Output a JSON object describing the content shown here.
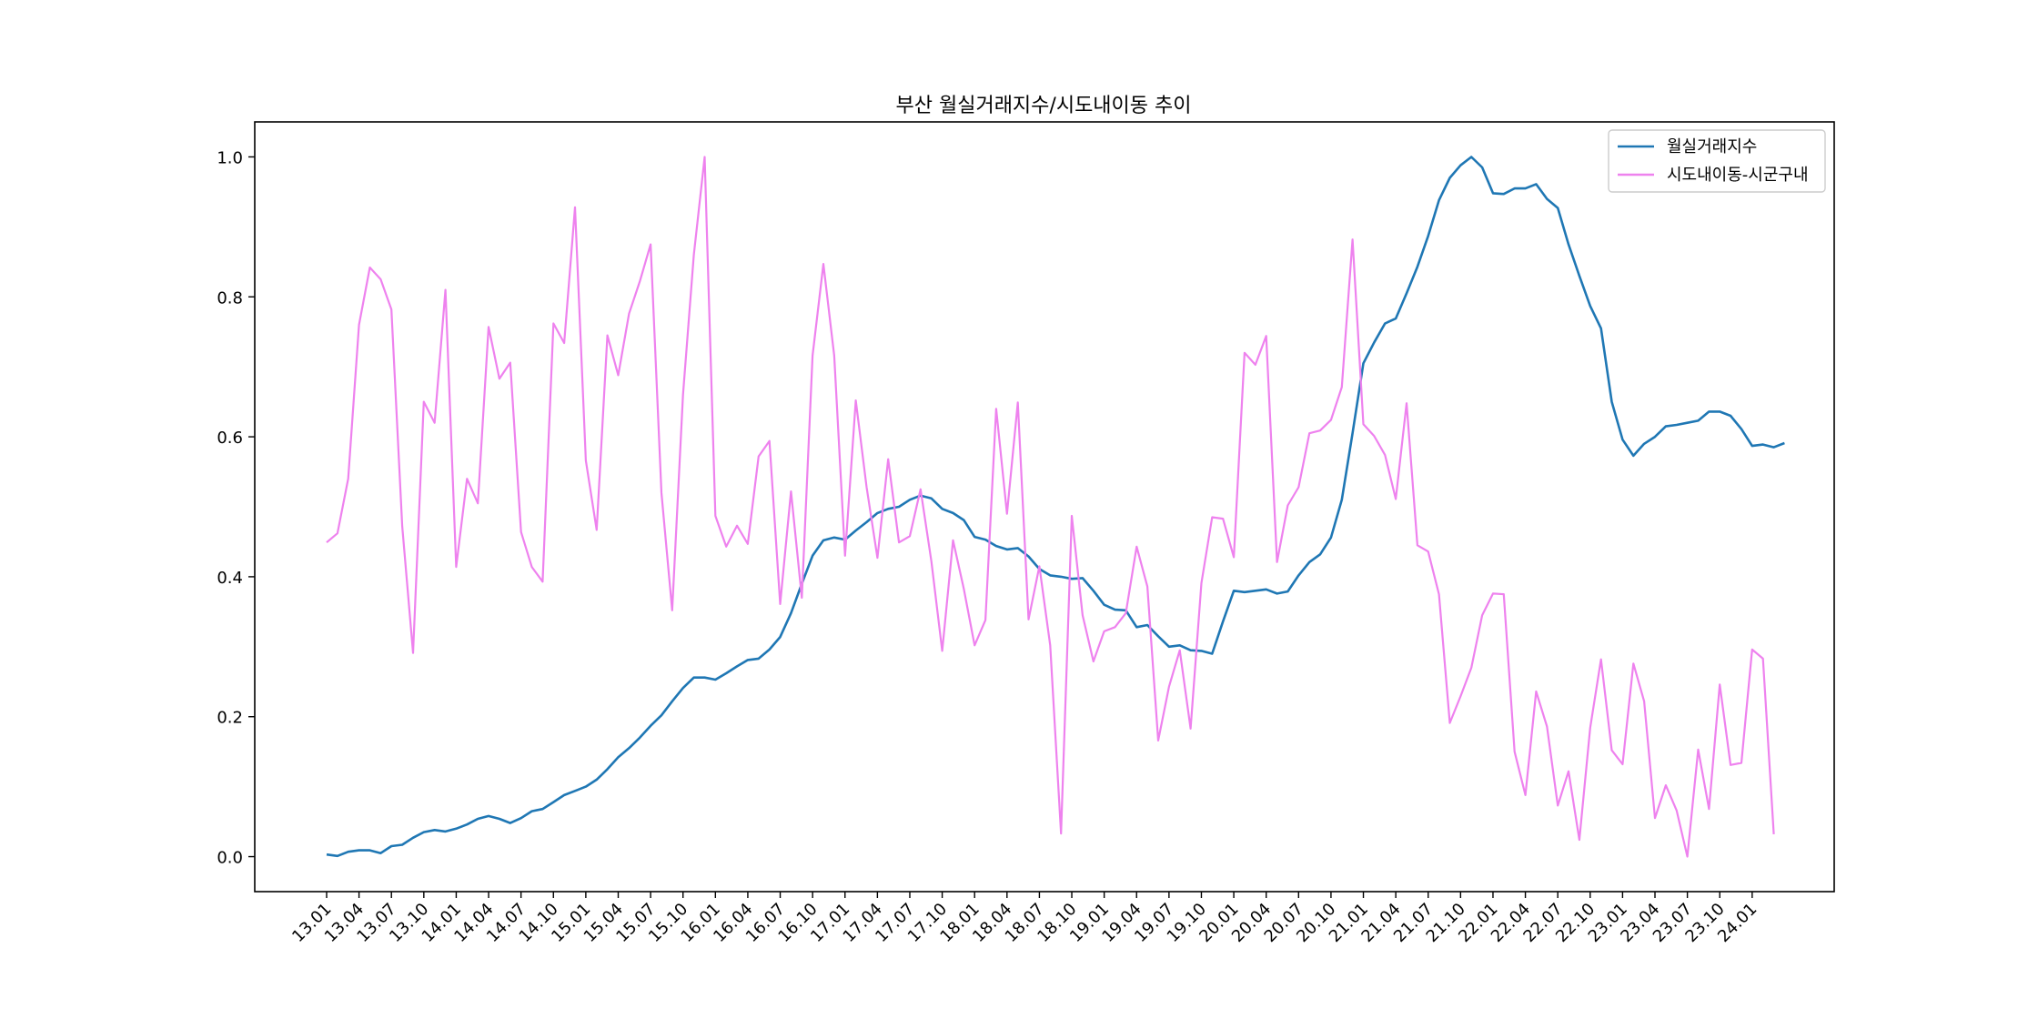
{
  "chart_data": {
    "type": "line",
    "title": "부산 월실거래지수/시도내이동 추이",
    "xlabel": "",
    "ylabel": "",
    "ylim": [
      -0.05,
      1.05
    ],
    "yticks": [
      "0.0",
      "0.2",
      "0.4",
      "0.6",
      "0.8",
      "1.0"
    ],
    "xtick_labels": [
      "13.01",
      "13.04",
      "13.07",
      "13.10",
      "14.01",
      "14.04",
      "14.07",
      "14.10",
      "15.01",
      "15.04",
      "15.07",
      "15.10",
      "16.01",
      "16.04",
      "16.07",
      "16.10",
      "17.01",
      "17.04",
      "17.07",
      "17.10",
      "18.01",
      "18.04",
      "18.07",
      "18.10",
      "19.01",
      "19.04",
      "19.07",
      "19.10",
      "20.01",
      "20.04",
      "20.07",
      "20.10",
      "21.01",
      "21.04",
      "21.07",
      "21.10",
      "22.01",
      "22.04",
      "22.07",
      "22.10",
      "23.01",
      "23.04",
      "23.07",
      "23.10",
      "24.01"
    ],
    "grid": false,
    "legend": "top-right",
    "series": [
      {
        "name": "월실거래지수",
        "color": "#1f77b4",
        "values": [
          0.003,
          0.001,
          0.007,
          0.009,
          0.009,
          0.005,
          0.015,
          0.017,
          0.027,
          0.035,
          0.038,
          0.036,
          0.04,
          0.046,
          0.054,
          0.058,
          0.054,
          0.048,
          0.055,
          0.065,
          0.068,
          0.078,
          0.088,
          0.094,
          0.1,
          0.11,
          0.125,
          0.142,
          0.155,
          0.17,
          0.187,
          0.202,
          0.222,
          0.241,
          0.256,
          0.256,
          0.253,
          0.262,
          0.272,
          0.281,
          0.283,
          0.296,
          0.314,
          0.348,
          0.39,
          0.43,
          0.452,
          0.456,
          0.453,
          0.466,
          0.478,
          0.491,
          0.497,
          0.5,
          0.51,
          0.516,
          0.512,
          0.497,
          0.491,
          0.481,
          0.457,
          0.453,
          0.444,
          0.439,
          0.441,
          0.429,
          0.411,
          0.402,
          0.4,
          0.397,
          0.398,
          0.38,
          0.36,
          0.353,
          0.352,
          0.328,
          0.331,
          0.315,
          0.3,
          0.302,
          0.295,
          0.294,
          0.29,
          0.336,
          0.38,
          0.378,
          0.38,
          0.382,
          0.376,
          0.379,
          0.402,
          0.421,
          0.432,
          0.456,
          0.51,
          0.605,
          0.705,
          0.735,
          0.762,
          0.769,
          0.805,
          0.843,
          0.887,
          0.938,
          0.97,
          0.988,
          1.0,
          0.985,
          0.948,
          0.947,
          0.955,
          0.955,
          0.961,
          0.94,
          0.927,
          0.875,
          0.83,
          0.787,
          0.755,
          0.65,
          0.596,
          0.573,
          0.59,
          0.6,
          0.615,
          0.617,
          0.62,
          0.623,
          0.636,
          0.636,
          0.63,
          0.611,
          0.587,
          0.589,
          0.585,
          0.591
        ]
      },
      {
        "name": "시도내이동-시군구내",
        "color": "#ee82ee",
        "values": [
          0.449,
          0.462,
          0.54,
          0.76,
          0.842,
          0.825,
          0.782,
          0.472,
          0.291,
          0.65,
          0.62,
          0.81,
          0.414,
          0.54,
          0.505,
          0.757,
          0.683,
          0.706,
          0.464,
          0.414,
          0.393,
          0.762,
          0.734,
          0.928,
          0.566,
          0.467,
          0.745,
          0.688,
          0.776,
          0.822,
          0.875,
          0.52,
          0.352,
          0.66,
          0.86,
          1.0,
          0.487,
          0.443,
          0.473,
          0.447,
          0.572,
          0.594,
          0.361,
          0.522,
          0.37,
          0.716,
          0.847,
          0.716,
          0.43,
          0.652,
          0.528,
          0.427,
          0.568,
          0.449,
          0.458,
          0.525,
          0.422,
          0.294,
          0.452,
          0.383,
          0.302,
          0.338,
          0.64,
          0.49,
          0.649,
          0.339,
          0.415,
          0.302,
          0.033,
          0.487,
          0.345,
          0.279,
          0.322,
          0.328,
          0.348,
          0.443,
          0.386,
          0.166,
          0.243,
          0.295,
          0.183,
          0.391,
          0.485,
          0.483,
          0.428,
          0.72,
          0.703,
          0.744,
          0.421,
          0.502,
          0.528,
          0.605,
          0.609,
          0.624,
          0.671,
          0.882,
          0.618,
          0.601,
          0.574,
          0.511,
          0.648,
          0.445,
          0.436,
          0.375,
          0.191,
          0.229,
          0.27,
          0.345,
          0.376,
          0.375,
          0.15,
          0.088,
          0.236,
          0.186,
          0.073,
          0.122,
          0.024,
          0.184,
          0.282,
          0.152,
          0.132,
          0.276,
          0.222,
          0.055,
          0.102,
          0.066,
          0.0,
          0.153,
          0.068,
          0.246,
          0.131,
          0.134,
          0.296,
          0.283,
          0.032
        ]
      }
    ]
  }
}
